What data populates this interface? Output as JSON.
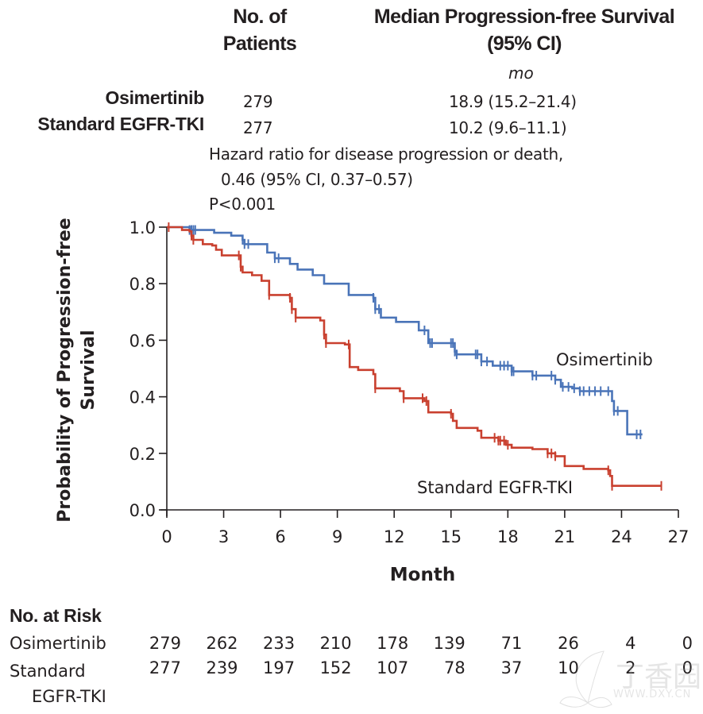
{
  "header": {
    "col_patients_line1": "No. of",
    "col_patients_line2": "Patients",
    "col_median_line1": "Median Progression-free Survival",
    "col_median_line2": "(95% CI)",
    "units": "mo",
    "rows": [
      {
        "group": "Osimertinib",
        "patients": "279",
        "median": "18.9 (15.2–21.4)"
      },
      {
        "group": "Standard EGFR-TKI",
        "patients": "277",
        "median": "10.2 (9.6–11.1)"
      }
    ],
    "hazard_line1": "Hazard ratio for disease progression or death,",
    "hazard_line2": "0.46 (95% CI, 0.37–0.57)",
    "p_value": "P<0.001"
  },
  "chart_data": {
    "type": "line",
    "subtype": "kaplan-meier-step",
    "title": "",
    "xlabel": "Month",
    "ylabel_line1": "Probability of Progression-free",
    "ylabel_line2": "Survival",
    "xlim": [
      0,
      27
    ],
    "ylim": [
      0,
      1
    ],
    "x_ticks": [
      0,
      3,
      6,
      9,
      12,
      15,
      18,
      21,
      24,
      27
    ],
    "x_tick_labels": [
      "0",
      "3",
      "6",
      "9",
      "12",
      "15",
      "18",
      "21",
      "24",
      "27"
    ],
    "y_ticks": [
      0,
      0.2,
      0.4,
      0.6,
      0.8,
      1.0
    ],
    "y_tick_labels": [
      "0.0",
      "0.2",
      "0.4",
      "0.6",
      "0.8",
      "1.0"
    ],
    "grid": false,
    "series": [
      {
        "name": "Osimertinib",
        "color": "#4a74b8",
        "label_position": "right-above-curve",
        "steps": [
          [
            0,
            1.0
          ],
          [
            1.2,
            0.99
          ],
          [
            2.5,
            0.98
          ],
          [
            3.4,
            0.97
          ],
          [
            4.0,
            0.955
          ],
          [
            4.1,
            0.94
          ],
          [
            5.3,
            0.91
          ],
          [
            5.7,
            0.89
          ],
          [
            6.5,
            0.87
          ],
          [
            6.9,
            0.85
          ],
          [
            7.7,
            0.83
          ],
          [
            8.3,
            0.8
          ],
          [
            9.6,
            0.76
          ],
          [
            10.9,
            0.75
          ],
          [
            11.0,
            0.71
          ],
          [
            11.3,
            0.68
          ],
          [
            12.1,
            0.665
          ],
          [
            13.3,
            0.635
          ],
          [
            13.8,
            0.59
          ],
          [
            15.2,
            0.56
          ],
          [
            15.3,
            0.55
          ],
          [
            16.6,
            0.525
          ],
          [
            17.2,
            0.51
          ],
          [
            18.2,
            0.49
          ],
          [
            19.3,
            0.475
          ],
          [
            20.5,
            0.46
          ],
          [
            20.8,
            0.435
          ],
          [
            21.4,
            0.43
          ],
          [
            21.8,
            0.42
          ],
          [
            23.5,
            0.385
          ],
          [
            23.6,
            0.35
          ],
          [
            24.3,
            0.267
          ]
        ],
        "end_month": 25.1,
        "censor_months": [
          1.2,
          1.3,
          1.4,
          1.5,
          4.0,
          4.1,
          4.3,
          5.7,
          5.9,
          10.9,
          11.0,
          11.2,
          13.6,
          13.9,
          14.0,
          15.0,
          15.1,
          15.2,
          15.3,
          16.3,
          16.4,
          16.6,
          16.9,
          17.6,
          17.8,
          18.0,
          18.2,
          18.3,
          19.3,
          19.5,
          20.3,
          20.5,
          20.9,
          21.2,
          21.5,
          21.8,
          22.0,
          22.3,
          22.6,
          22.9,
          23.3,
          23.6,
          23.8,
          24.8,
          25.0
        ],
        "at_risk": [
          279,
          262,
          233,
          210,
          178,
          139,
          71,
          26,
          4,
          0
        ]
      },
      {
        "name": "Standard EGFR-TKI",
        "color": "#c9402f",
        "label_position": "right-above-curve",
        "steps": [
          [
            0,
            1.0
          ],
          [
            0.8,
            0.99
          ],
          [
            1.2,
            0.985
          ],
          [
            1.3,
            0.97
          ],
          [
            1.4,
            0.955
          ],
          [
            1.9,
            0.94
          ],
          [
            2.4,
            0.935
          ],
          [
            2.6,
            0.92
          ],
          [
            2.9,
            0.9
          ],
          [
            3.9,
            0.86
          ],
          [
            4.0,
            0.84
          ],
          [
            4.5,
            0.83
          ],
          [
            5.0,
            0.81
          ],
          [
            5.4,
            0.76
          ],
          [
            6.5,
            0.75
          ],
          [
            6.6,
            0.71
          ],
          [
            6.8,
            0.68
          ],
          [
            8.1,
            0.67
          ],
          [
            8.3,
            0.62
          ],
          [
            8.4,
            0.59
          ],
          [
            9.4,
            0.585
          ],
          [
            9.65,
            0.505
          ],
          [
            10.1,
            0.495
          ],
          [
            10.9,
            0.48
          ],
          [
            11.0,
            0.43
          ],
          [
            12.3,
            0.42
          ],
          [
            12.5,
            0.395
          ],
          [
            13.6,
            0.385
          ],
          [
            13.8,
            0.345
          ],
          [
            15.0,
            0.34
          ],
          [
            15.1,
            0.315
          ],
          [
            15.3,
            0.29
          ],
          [
            16.4,
            0.28
          ],
          [
            16.6,
            0.255
          ],
          [
            17.5,
            0.245
          ],
          [
            17.9,
            0.23
          ],
          [
            18.2,
            0.22
          ],
          [
            19.3,
            0.215
          ],
          [
            20.1,
            0.2
          ],
          [
            20.5,
            0.19
          ],
          [
            21.0,
            0.155
          ],
          [
            22.0,
            0.145
          ],
          [
            23.3,
            0.14
          ],
          [
            23.4,
            0.12
          ],
          [
            23.5,
            0.085
          ]
        ],
        "end_month": 26.1,
        "censor_months": [
          0.1,
          1.3,
          1.4,
          3.8,
          3.9,
          5.4,
          6.5,
          6.6,
          6.8,
          8.3,
          8.4,
          9.6,
          11.0,
          12.5,
          13.5,
          13.7,
          15.0,
          17.3,
          17.5,
          17.6,
          17.8,
          18.0,
          20.1,
          20.3,
          20.5,
          23.3,
          23.5,
          26.1
        ],
        "at_risk": [
          277,
          239,
          197,
          152,
          107,
          78,
          37,
          10,
          2,
          0
        ]
      }
    ]
  },
  "at_risk_table": {
    "title": "No. at Risk",
    "rows": [
      {
        "label_line1": "Osimertinib",
        "label_line2": "",
        "values": [
          "279",
          "262",
          "233",
          "210",
          "178",
          "139",
          "71",
          "26",
          "4",
          "0"
        ]
      },
      {
        "label_line1": "Standard",
        "label_line2": "EGFR-TKI",
        "values": [
          "277",
          "239",
          "197",
          "152",
          "107",
          "78",
          "37",
          "10",
          "2",
          "0"
        ]
      }
    ]
  },
  "watermark": {
    "text_cn": "丁香园",
    "text_url": "WWW.DXY.CN"
  }
}
